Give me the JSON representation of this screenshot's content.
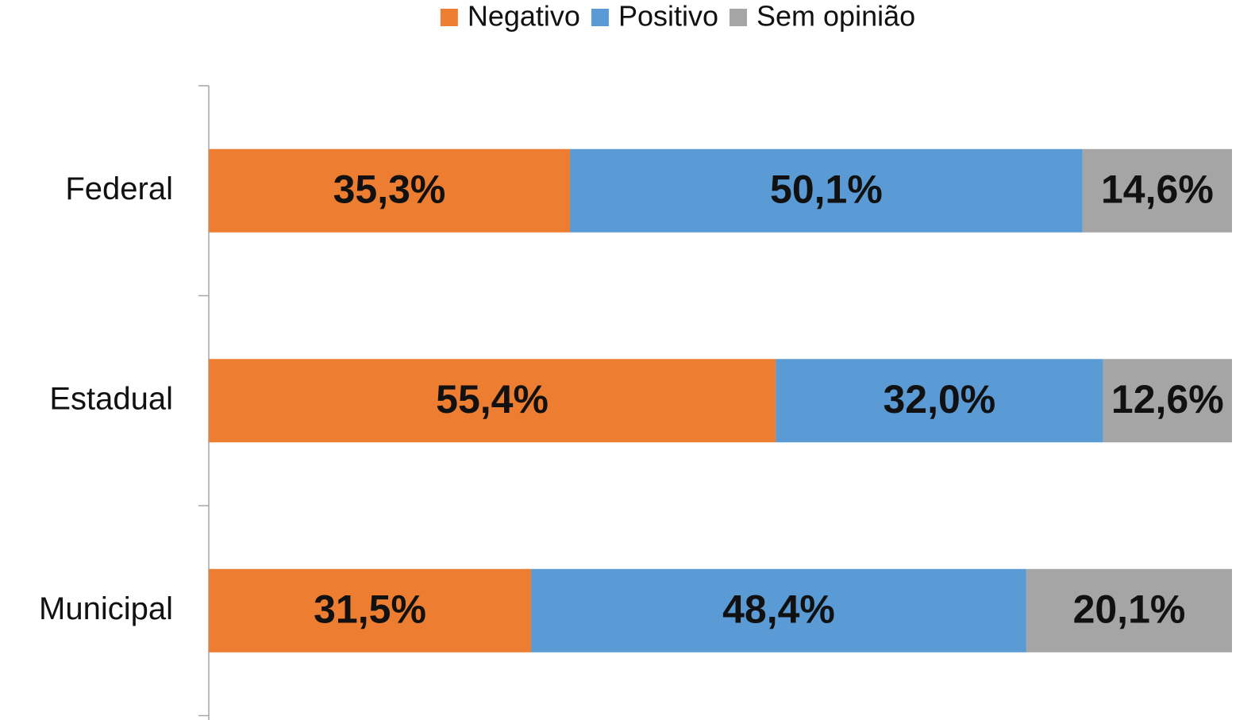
{
  "chart_data": {
    "type": "stacked_bar_horizontal",
    "categories": [
      "Federal",
      "Estadual",
      "Municipal"
    ],
    "series": [
      {
        "name": "Negativo",
        "color": "#ed7d31",
        "values": [
          35.3,
          55.4,
          31.5
        ],
        "value_labels": [
          "35,3%",
          "55,4%",
          "31,5%"
        ]
      },
      {
        "name": "Positivo",
        "color": "#5b9bd5",
        "values": [
          50.1,
          32.0,
          48.4
        ],
        "value_labels": [
          "50,1%",
          "32,0%",
          "48,4%"
        ]
      },
      {
        "name": "Sem opinião",
        "color": "#a5a5a5",
        "values": [
          14.6,
          12.6,
          20.1
        ],
        "value_labels": [
          "14,6%",
          "12,6%",
          "20,1%"
        ]
      }
    ],
    "legend": "top"
  }
}
